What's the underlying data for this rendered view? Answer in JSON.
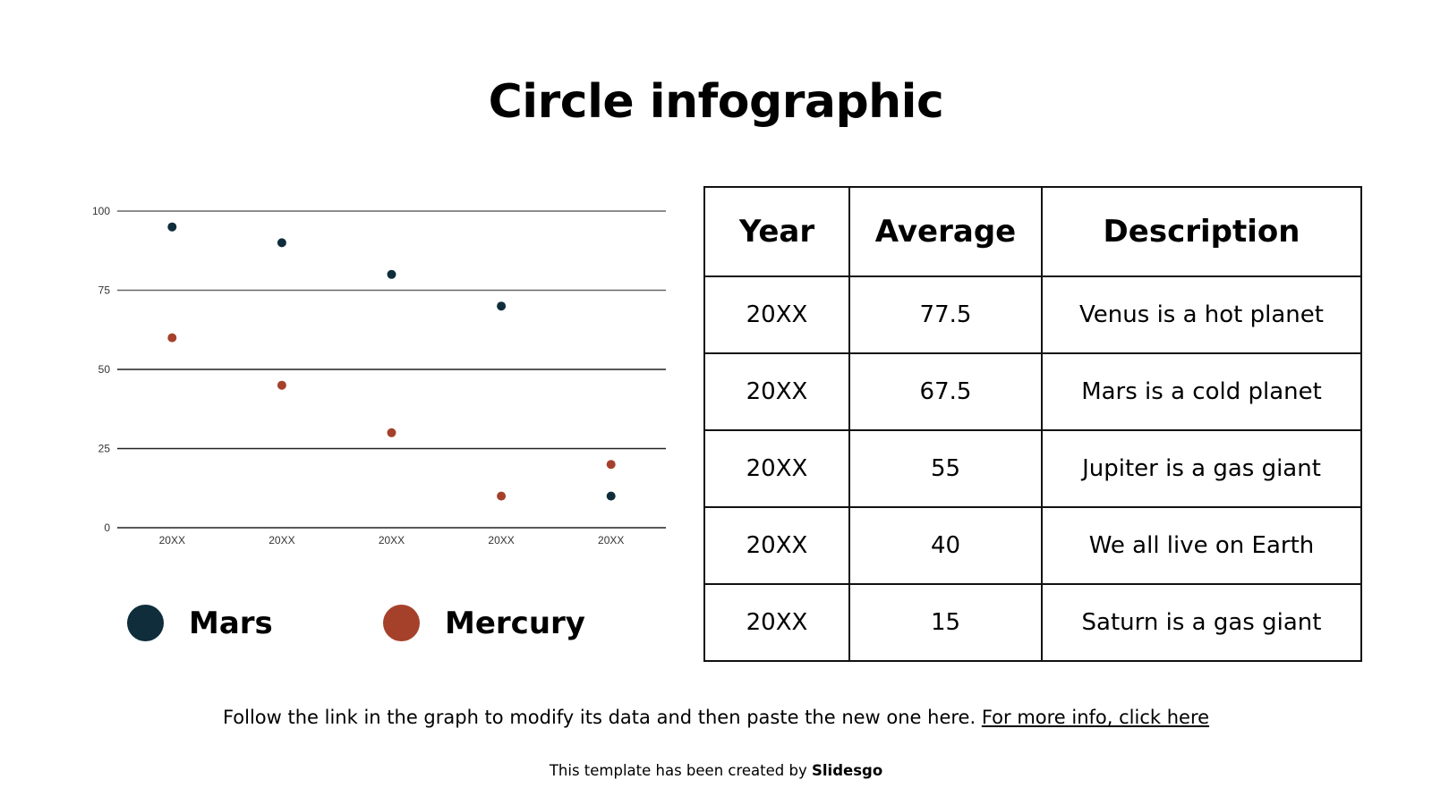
{
  "title": "Circle infographic",
  "chart_data": {
    "type": "scatter",
    "categories": [
      "20XX",
      "20XX",
      "20XX",
      "20XX",
      "20XX"
    ],
    "series": [
      {
        "name": "Mars",
        "color": "#0f2d3a",
        "values": [
          95,
          90,
          80,
          70,
          10
        ]
      },
      {
        "name": "Mercury",
        "color": "#a5412b",
        "values": [
          60,
          45,
          30,
          10,
          20
        ]
      }
    ],
    "ylim": [
      0,
      100
    ],
    "yticks": [
      0,
      25,
      50,
      75,
      100
    ],
    "grid": true,
    "legend": "bottom"
  },
  "table": {
    "headers": [
      "Year",
      "Average",
      "Description"
    ],
    "rows": [
      [
        "20XX",
        "77.5",
        "Venus is a hot planet"
      ],
      [
        "20XX",
        "67.5",
        "Mars is a cold planet"
      ],
      [
        "20XX",
        "55",
        "Jupiter is a gas giant"
      ],
      [
        "20XX",
        "40",
        "We all live on Earth"
      ],
      [
        "20XX",
        "15",
        "Saturn is a gas giant"
      ]
    ]
  },
  "note": {
    "text": "Follow the link in the graph to modify its data and then paste the new one here. ",
    "link": "For more info, click here"
  },
  "credit": {
    "text": "This template has been created by ",
    "brand": "Slidesgo"
  }
}
